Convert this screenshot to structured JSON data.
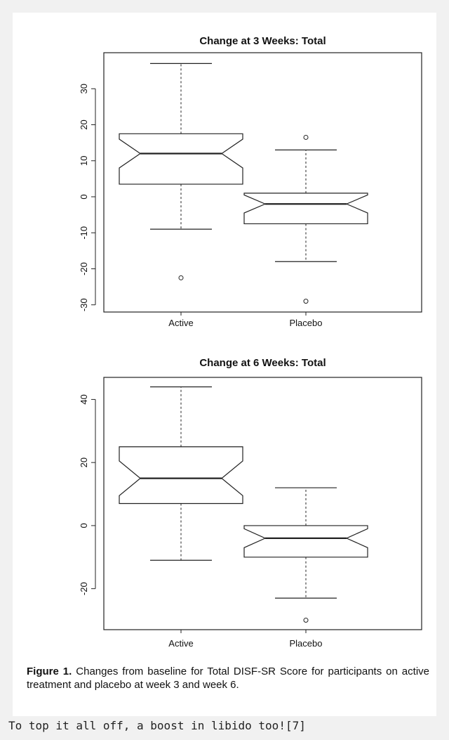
{
  "chart_data": [
    {
      "type": "box",
      "title": "Change at 3 Weeks: Total",
      "categories": [
        "Active",
        "Placebo"
      ],
      "yticks": [
        30,
        20,
        10,
        0,
        -10,
        -20,
        -30
      ],
      "ylim": [
        -32,
        40
      ],
      "notched": true,
      "boxes": [
        {
          "name": "Active",
          "whisker_low": -9,
          "q1": 3.5,
          "median": 12,
          "q3": 17.5,
          "whisker_high": 37,
          "notch_low": 8,
          "notch_high": 16,
          "outliers": [
            -22.5
          ]
        },
        {
          "name": "Placebo",
          "whisker_low": -18,
          "q1": -7.5,
          "median": -2,
          "q3": 1,
          "whisker_high": 13,
          "notch_low": -4.5,
          "notch_high": 0.5,
          "outliers": [
            16.5,
            -29
          ]
        }
      ]
    },
    {
      "type": "box",
      "title": "Change at 6 Weeks: Total",
      "categories": [
        "Active",
        "Placebo"
      ],
      "yticks": [
        40,
        20,
        0,
        -20
      ],
      "ylim": [
        -33,
        47
      ],
      "notched": true,
      "boxes": [
        {
          "name": "Active",
          "whisker_low": -11,
          "q1": 7,
          "median": 15,
          "q3": 25,
          "whisker_high": 44,
          "notch_low": 9.5,
          "notch_high": 20.5,
          "outliers": []
        },
        {
          "name": "Placebo",
          "whisker_low": -23,
          "q1": -10,
          "median": -4,
          "q3": 0,
          "whisker_high": 12,
          "notch_low": -7,
          "notch_high": -1,
          "outliers": [
            -30
          ]
        }
      ]
    }
  ],
  "caption": {
    "label": "Figure 1.",
    "text": " Changes from baseline for Total DISF-SR Score for participants on active treatment and placebo at week 3 and week 6."
  },
  "footer_text": "To top it all off, a boost in libido too![7]"
}
